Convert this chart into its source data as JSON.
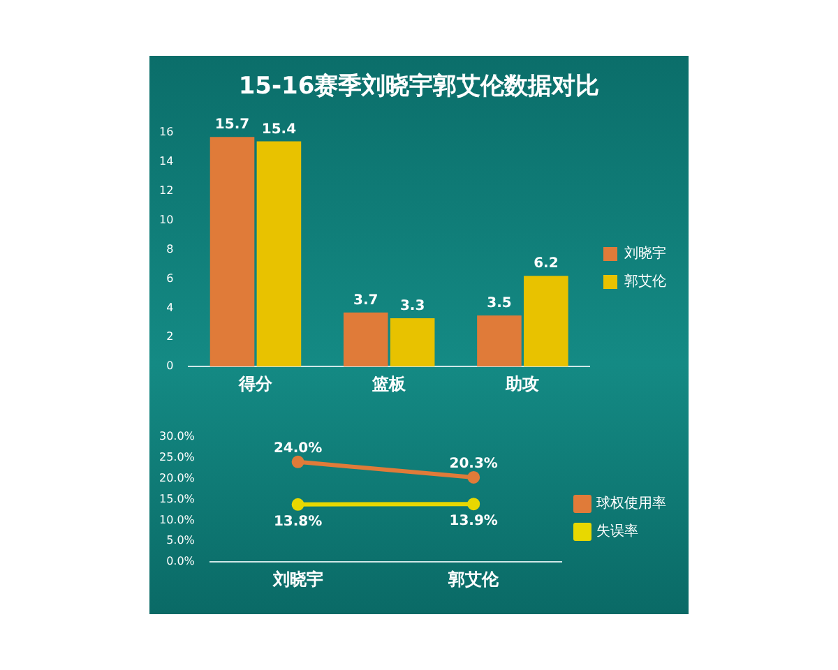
{
  "chart_data": [
    {
      "type": "bar",
      "title": "15-16赛季刘晓宇郭艾伦数据对比",
      "categories": [
        "得分",
        "篮板",
        "助攻"
      ],
      "series": [
        {
          "name": "刘晓宇",
          "color": "#e07b39",
          "values": [
            15.7,
            3.7,
            3.5
          ]
        },
        {
          "name": "郭艾伦",
          "color": "#e8c200",
          "values": [
            15.4,
            3.3,
            6.2
          ]
        }
      ],
      "ylim": [
        0,
        16
      ],
      "yticks": [
        0,
        2,
        4,
        6,
        8,
        10,
        12,
        14,
        16
      ],
      "data_labels": true,
      "legend": "right"
    },
    {
      "type": "line",
      "categories": [
        "刘晓宇",
        "郭艾伦"
      ],
      "series": [
        {
          "name": "球权使用率",
          "color": "#e07b39",
          "values": [
            24.0,
            20.3
          ],
          "value_labels": [
            "24.0%",
            "20.3%"
          ]
        },
        {
          "name": "失误率",
          "color": "#e8d800",
          "values": [
            13.8,
            13.9
          ],
          "value_labels": [
            "13.8%",
            "13.9%"
          ]
        }
      ],
      "ylim": [
        0,
        30
      ],
      "yticks": [
        {
          "value": 0,
          "label": "0.0%"
        },
        {
          "value": 5,
          "label": "5.0%"
        },
        {
          "value": 10,
          "label": "10.0%"
        },
        {
          "value": 15,
          "label": "15.0%"
        },
        {
          "value": 20,
          "label": "20.0%"
        },
        {
          "value": 25,
          "label": "25.0%"
        },
        {
          "value": 30,
          "label": "30.0%"
        }
      ],
      "marker": "circle",
      "line_style": "solid",
      "legend": "right"
    }
  ]
}
